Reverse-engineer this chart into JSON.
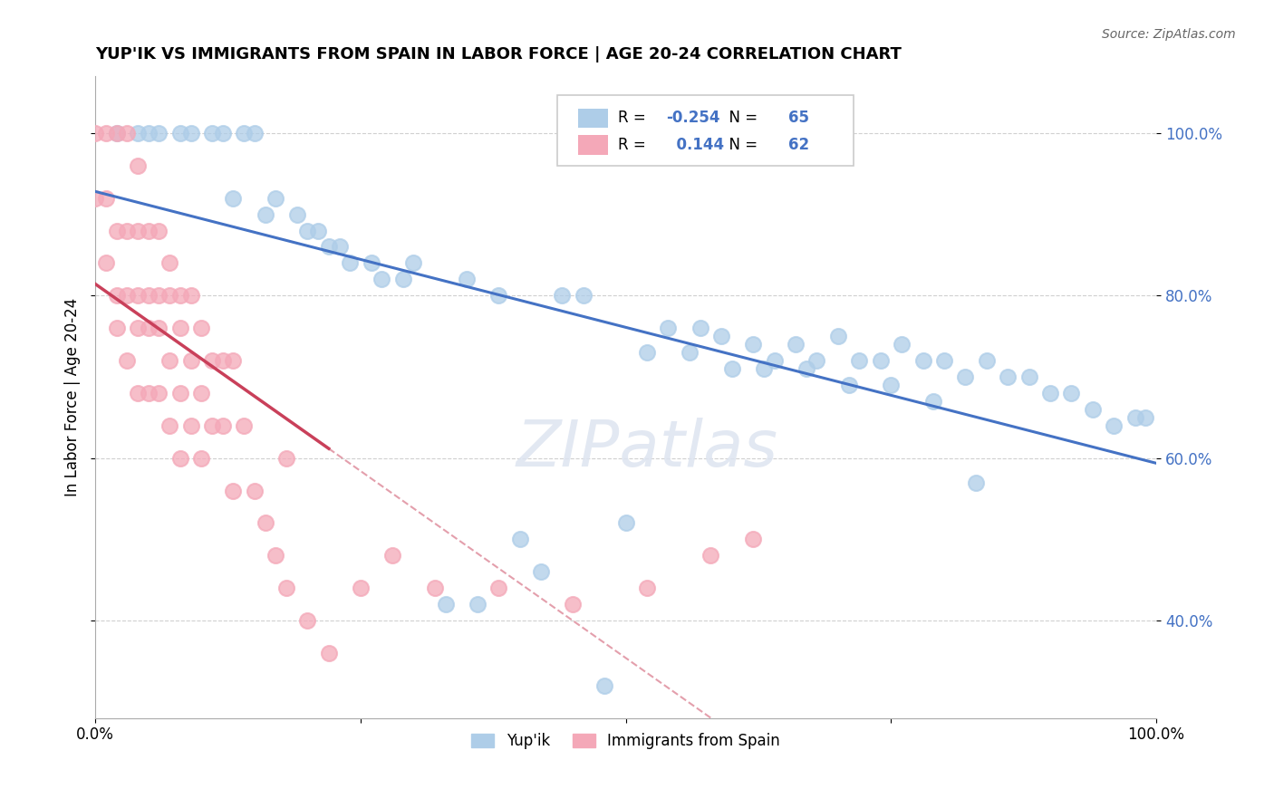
{
  "title": "YUP'IK VS IMMIGRANTS FROM SPAIN IN LABOR FORCE | AGE 20-24 CORRELATION CHART",
  "source": "Source: ZipAtlas.com",
  "ylabel": "In Labor Force | Age 20-24",
  "xlim": [
    0.0,
    1.0
  ],
  "ylim": [
    0.28,
    1.07
  ],
  "yticks": [
    0.4,
    0.6,
    0.8,
    1.0
  ],
  "ytick_labels": [
    "40.0%",
    "60.0%",
    "80.0%",
    "100.0%"
  ],
  "R_blue": -0.254,
  "N_blue": 65,
  "R_pink": 0.144,
  "N_pink": 62,
  "blue_color": "#aecde8",
  "pink_color": "#f4a8b8",
  "trend_blue": "#4472c4",
  "trend_pink": "#c9405a",
  "background": "#ffffff",
  "grid_color": "#d0d0d0",
  "legend_label_blue": "Yup'ik",
  "legend_label_pink": "Immigrants from Spain",
  "blue_x": [
    0.02,
    0.04,
    0.06,
    0.08,
    0.11,
    0.12,
    0.14,
    0.15,
    0.17,
    0.19,
    0.21,
    0.22,
    0.24,
    0.27,
    0.3,
    0.35,
    0.38,
    0.42,
    0.46,
    0.5,
    0.54,
    0.57,
    0.59,
    0.62,
    0.64,
    0.66,
    0.68,
    0.7,
    0.72,
    0.74,
    0.76,
    0.78,
    0.8,
    0.82,
    0.84,
    0.86,
    0.88,
    0.9,
    0.92,
    0.94,
    0.96,
    0.98,
    0.99,
    0.05,
    0.09,
    0.13,
    0.16,
    0.2,
    0.23,
    0.26,
    0.29,
    0.33,
    0.36,
    0.4,
    0.44,
    0.48,
    0.52,
    0.56,
    0.6,
    0.63,
    0.67,
    0.71,
    0.75,
    0.79,
    0.83
  ],
  "blue_y": [
    1.0,
    1.0,
    1.0,
    1.0,
    1.0,
    1.0,
    1.0,
    1.0,
    0.92,
    0.9,
    0.88,
    0.86,
    0.84,
    0.82,
    0.84,
    0.82,
    0.8,
    0.46,
    0.8,
    0.52,
    0.76,
    0.76,
    0.75,
    0.74,
    0.72,
    0.74,
    0.72,
    0.75,
    0.72,
    0.72,
    0.74,
    0.72,
    0.72,
    0.7,
    0.72,
    0.7,
    0.7,
    0.68,
    0.68,
    0.66,
    0.64,
    0.65,
    0.65,
    1.0,
    1.0,
    0.92,
    0.9,
    0.88,
    0.86,
    0.84,
    0.82,
    0.42,
    0.42,
    0.5,
    0.8,
    0.32,
    0.73,
    0.73,
    0.71,
    0.71,
    0.71,
    0.69,
    0.69,
    0.67,
    0.57
  ],
  "pink_x": [
    0.0,
    0.0,
    0.01,
    0.01,
    0.01,
    0.02,
    0.02,
    0.02,
    0.02,
    0.03,
    0.03,
    0.03,
    0.03,
    0.04,
    0.04,
    0.04,
    0.04,
    0.04,
    0.05,
    0.05,
    0.05,
    0.05,
    0.06,
    0.06,
    0.06,
    0.06,
    0.07,
    0.07,
    0.07,
    0.07,
    0.08,
    0.08,
    0.08,
    0.08,
    0.09,
    0.09,
    0.09,
    0.1,
    0.1,
    0.1,
    0.11,
    0.11,
    0.12,
    0.12,
    0.13,
    0.13,
    0.14,
    0.15,
    0.16,
    0.17,
    0.18,
    0.2,
    0.22,
    0.25,
    0.28,
    0.32,
    0.38,
    0.45,
    0.52,
    0.58,
    0.62,
    0.18
  ],
  "pink_y": [
    1.0,
    0.92,
    1.0,
    0.92,
    0.84,
    1.0,
    0.88,
    0.8,
    0.76,
    1.0,
    0.88,
    0.8,
    0.72,
    0.96,
    0.88,
    0.8,
    0.76,
    0.68,
    0.88,
    0.8,
    0.76,
    0.68,
    0.88,
    0.8,
    0.76,
    0.68,
    0.84,
    0.8,
    0.72,
    0.64,
    0.8,
    0.76,
    0.68,
    0.6,
    0.8,
    0.72,
    0.64,
    0.76,
    0.68,
    0.6,
    0.72,
    0.64,
    0.72,
    0.64,
    0.72,
    0.56,
    0.64,
    0.56,
    0.52,
    0.48,
    0.44,
    0.4,
    0.36,
    0.44,
    0.48,
    0.44,
    0.44,
    0.42,
    0.44,
    0.48,
    0.5,
    0.6
  ]
}
